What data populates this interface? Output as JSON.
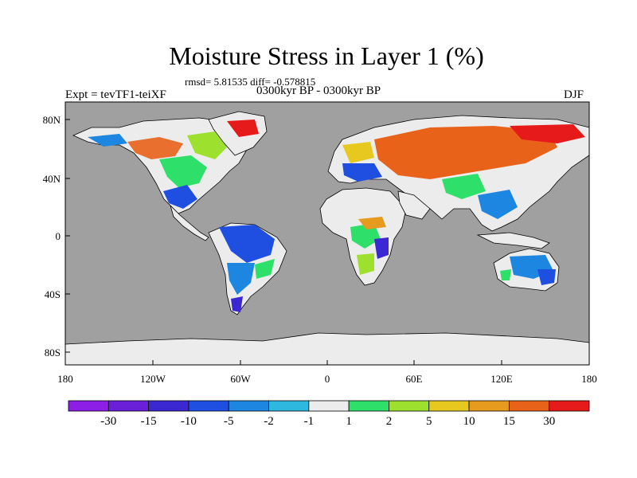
{
  "figure": {
    "title": "Moisture Stress in Layer 1 (%)",
    "stats_line": "rmsd= 5.81535 diff= -0.578815",
    "period": "0300kyr BP - 0300kyr BP",
    "experiment": "Expt = tevTF1-teiXF",
    "season": "DJF"
  },
  "chart_data": {
    "type": "heatmap",
    "title": "Moisture Stress in Layer 1 (%)",
    "variable": "Moisture Stress in Layer 1",
    "units": "%",
    "lat_range": [
      -90,
      90
    ],
    "lon_range": [
      -180,
      180
    ],
    "lat_ticks": [
      "80N",
      "40N",
      "0",
      "40S",
      "80S"
    ],
    "lon_ticks": [
      "180",
      "120W",
      "60W",
      "0",
      "60E",
      "120E",
      "180"
    ],
    "ocean_color": "#a0a0a0",
    "land_neutral_color": "#ececec",
    "colorbar": {
      "bins": [
        {
          "color": "#8c1ee6"
        },
        {
          "color": "#6a1fd8"
        },
        {
          "color": "#3c28d2"
        },
        {
          "color": "#1f4fe0"
        },
        {
          "color": "#1c86e0"
        },
        {
          "color": "#2eb8e0"
        },
        {
          "color": "#ececec"
        },
        {
          "color": "#2ee06a"
        },
        {
          "color": "#9ee02e"
        },
        {
          "color": "#e6c81e"
        },
        {
          "color": "#e69a1e"
        },
        {
          "color": "#e8621a"
        },
        {
          "color": "#e61a1a"
        }
      ],
      "boundary_labels": [
        "-30",
        "-15",
        "-10",
        "-5",
        "-2",
        "-1",
        "1",
        "2",
        "5",
        "10",
        "15",
        "30"
      ]
    }
  }
}
